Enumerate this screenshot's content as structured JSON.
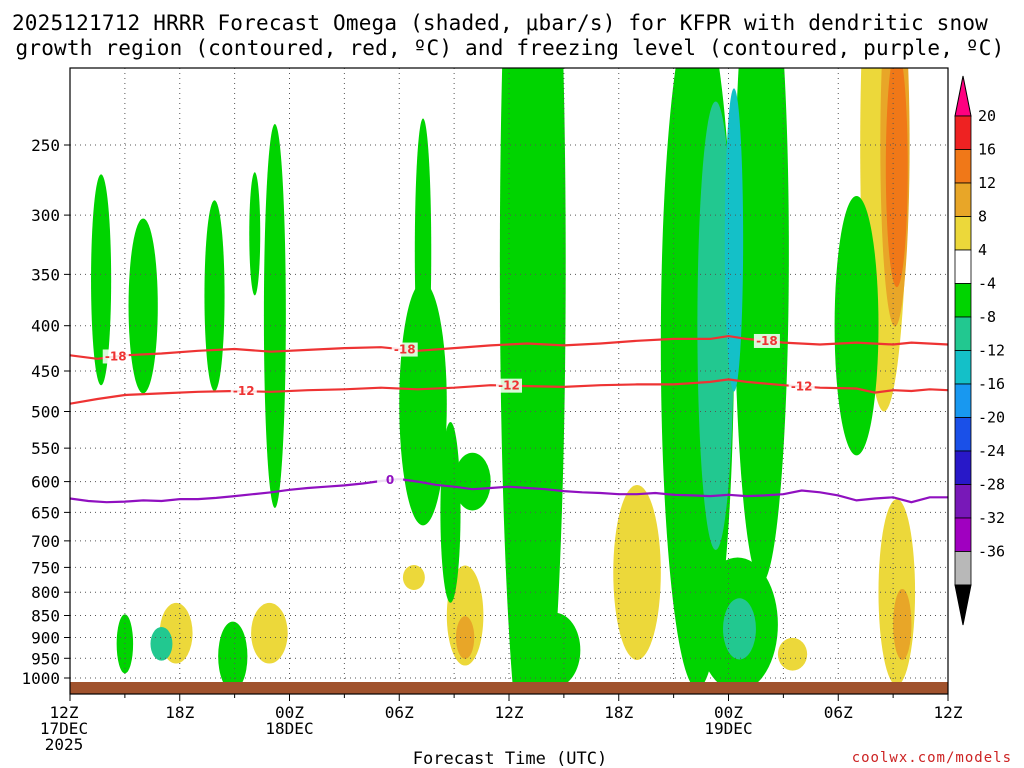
{
  "chart_data": {
    "type": "heatmap",
    "title_lines": [
      "2025121712 HRRR Forecast Omega (shaded, μbar/s) for KFPR with dendritic snow",
      "growth region (contoured, red, ºC) and freezing level (contoured, purple, ºC)"
    ],
    "xlabel": "Forecast Time (UTC)",
    "credit": "coolwx.com/models",
    "x_ticks": [
      {
        "h": 0,
        "lines": [
          "12Z",
          "17DEC",
          "2025"
        ]
      },
      {
        "h": 6,
        "lines": [
          "18Z"
        ]
      },
      {
        "h": 12,
        "lines": [
          "00Z",
          "18DEC"
        ]
      },
      {
        "h": 18,
        "lines": [
          "06Z"
        ]
      },
      {
        "h": 24,
        "lines": [
          "12Z"
        ]
      },
      {
        "h": 30,
        "lines": [
          "18Z"
        ]
      },
      {
        "h": 36,
        "lines": [
          "00Z",
          "19DEC"
        ]
      },
      {
        "h": 42,
        "lines": [
          "06Z"
        ]
      },
      {
        "h": 48,
        "lines": [
          "12Z"
        ]
      }
    ],
    "y_ticks": [
      250,
      300,
      350,
      400,
      450,
      500,
      550,
      600,
      650,
      700,
      750,
      800,
      850,
      900,
      950,
      1000
    ],
    "colorbar": {
      "labels": [
        "20",
        "16",
        "12",
        "8",
        "4",
        "-4",
        "-8",
        "-12",
        "-16",
        "-20",
        "-24",
        "-28",
        "-32",
        "-36"
      ],
      "colors": [
        "#ff0080",
        "#ee2222",
        "#f07818",
        "#e8a628",
        "#ecd83a",
        "#ffffff",
        "#00d400",
        "#22c890",
        "#14c0c8",
        "#1898f0",
        "#1a50e8",
        "#2818c8",
        "#7818b8",
        "#a000c0",
        "#b8b8b8",
        "#000000"
      ]
    },
    "contours": [
      {
        "name": "dgz_minus18",
        "label": "-18",
        "color": "#ee3333",
        "points": [
          [
            0,
            432
          ],
          [
            1.5,
            436
          ],
          [
            3,
            432
          ],
          [
            5,
            430
          ],
          [
            7,
            427
          ],
          [
            9,
            425
          ],
          [
            11,
            428
          ],
          [
            13,
            426
          ],
          [
            15,
            424
          ],
          [
            17,
            423
          ],
          [
            19,
            427
          ],
          [
            21,
            424
          ],
          [
            23,
            421
          ],
          [
            25,
            419
          ],
          [
            27,
            421
          ],
          [
            29,
            419
          ],
          [
            31,
            416
          ],
          [
            33,
            414
          ],
          [
            35,
            414
          ],
          [
            36,
            411
          ],
          [
            37,
            414
          ],
          [
            39,
            418
          ],
          [
            41,
            420
          ],
          [
            43,
            418
          ],
          [
            45,
            420
          ],
          [
            46,
            418
          ],
          [
            48,
            420
          ]
        ],
        "label_h": [
          2.5,
          18.3,
          38.1
        ]
      },
      {
        "name": "dgz_minus12",
        "label": "-12",
        "color": "#ee3333",
        "points": [
          [
            0,
            490
          ],
          [
            1.5,
            484
          ],
          [
            3,
            479
          ],
          [
            5,
            477
          ],
          [
            7,
            475
          ],
          [
            9,
            474
          ],
          [
            11,
            475
          ],
          [
            13,
            473
          ],
          [
            15,
            472
          ],
          [
            17,
            470
          ],
          [
            19,
            472
          ],
          [
            21,
            470
          ],
          [
            23,
            467
          ],
          [
            25,
            468
          ],
          [
            27,
            469
          ],
          [
            29,
            467
          ],
          [
            31,
            466
          ],
          [
            33,
            466
          ],
          [
            35,
            463
          ],
          [
            36,
            460
          ],
          [
            37,
            463
          ],
          [
            39,
            467
          ],
          [
            41,
            470
          ],
          [
            43,
            471
          ],
          [
            44,
            476
          ],
          [
            45,
            473
          ],
          [
            46,
            474
          ],
          [
            47,
            472
          ],
          [
            48,
            473
          ]
        ],
        "label_h": [
          9.5,
          24.0,
          40.0
        ]
      },
      {
        "name": "freezing_level_0",
        "label": "0",
        "color": "#9010c0",
        "points": [
          [
            0,
            627
          ],
          [
            1,
            631
          ],
          [
            2,
            633
          ],
          [
            3,
            632
          ],
          [
            4,
            630
          ],
          [
            5,
            631
          ],
          [
            6,
            628
          ],
          [
            7,
            628
          ],
          [
            8,
            626
          ],
          [
            9,
            623
          ],
          [
            10,
            620
          ],
          [
            11,
            617
          ],
          [
            12,
            613
          ],
          [
            13,
            610
          ],
          [
            14,
            608
          ],
          [
            15,
            606
          ],
          [
            16,
            603
          ],
          [
            17,
            599
          ],
          [
            18,
            596
          ],
          [
            19,
            600
          ],
          [
            20,
            605
          ],
          [
            21,
            608
          ],
          [
            22,
            612
          ],
          [
            23,
            610
          ],
          [
            24,
            608
          ],
          [
            25,
            610
          ],
          [
            26,
            612
          ],
          [
            27,
            615
          ],
          [
            28,
            617
          ],
          [
            29,
            618
          ],
          [
            30,
            620
          ],
          [
            31,
            620
          ],
          [
            32,
            618
          ],
          [
            33,
            621
          ],
          [
            34,
            622
          ],
          [
            35,
            623
          ],
          [
            36,
            621
          ],
          [
            37,
            623
          ],
          [
            38,
            622
          ],
          [
            39,
            620
          ],
          [
            40,
            614
          ],
          [
            41,
            617
          ],
          [
            42,
            622
          ],
          [
            43,
            630
          ],
          [
            44,
            627
          ],
          [
            45,
            625
          ],
          [
            46,
            633
          ],
          [
            47,
            625
          ],
          [
            48,
            625
          ]
        ],
        "label_h": [
          17.5
        ]
      }
    ],
    "omega_regions": [
      {
        "v": -4,
        "h": 1.7,
        "p": 355,
        "rh": 0.55,
        "rp": 95
      },
      {
        "v": -4,
        "h": 4.0,
        "p": 380,
        "rh": 0.8,
        "rp": 85
      },
      {
        "v": -4,
        "h": 7.9,
        "p": 370,
        "rh": 0.55,
        "rp": 90
      },
      {
        "v": -4,
        "h": 10.1,
        "p": 315,
        "rh": 0.3,
        "rp": 50
      },
      {
        "v": -4,
        "h": 19.3,
        "p": 330,
        "rh": 0.45,
        "rp": 110
      },
      {
        "v": -4,
        "h": 22.0,
        "p": 600,
        "rh": 1.0,
        "rp": 45
      },
      {
        "v": 4,
        "h": 5.8,
        "p": 890,
        "rh": 0.9,
        "rp": 70
      },
      {
        "v": 4,
        "h": 10.9,
        "p": 890,
        "rh": 1.0,
        "rp": 70
      },
      {
        "v": 4,
        "h": 18.8,
        "p": 770,
        "rh": 0.6,
        "rp": 25
      },
      {
        "v": 4,
        "h": 21.6,
        "p": 850,
        "rh": 1.0,
        "rp": 110
      },
      {
        "v": 4,
        "h": 31.0,
        "p": 760,
        "rh": 1.3,
        "rp": 170
      },
      {
        "v": 4,
        "h": 34.0,
        "p": 780,
        "rh": 0.5,
        "rp": 60
      },
      {
        "v": 4,
        "h": 39.5,
        "p": 940,
        "rh": 0.8,
        "rp": 40
      },
      {
        "v": 4,
        "h": 44.5,
        "p": 250,
        "rh": 1.3,
        "rp": 150
      },
      {
        "v": 4,
        "h": 45.2,
        "p": 800,
        "rh": 1.0,
        "rp": 190
      },
      {
        "v": -8,
        "h": 8.9,
        "p": 945,
        "rh": 0.8,
        "rp": 85
      },
      {
        "v": -8,
        "h": 3.0,
        "p": 915,
        "rh": 0.45,
        "rp": 70
      },
      {
        "v": -8,
        "h": 11.2,
        "p": 390,
        "rh": 0.6,
        "rp": 180
      },
      {
        "v": -8,
        "h": 19.3,
        "p": 490,
        "rh": 1.3,
        "rp": 150
      },
      {
        "v": -8,
        "h": 20.8,
        "p": 650,
        "rh": 0.55,
        "rp": 150
      },
      {
        "v": -8,
        "h": 25.3,
        "p": 340,
        "rh": 1.8,
        "rp": 300
      },
      {
        "v": -8,
        "h": 26.5,
        "p": 930,
        "rh": 1.4,
        "rp": 90
      },
      {
        "v": -8,
        "h": 34.3,
        "p": 420,
        "rh": 2.0,
        "rp": 300
      },
      {
        "v": -8,
        "h": 37.8,
        "p": 330,
        "rh": 1.5,
        "rp": 230
      },
      {
        "v": -8,
        "h": 36.5,
        "p": 870,
        "rh": 2.2,
        "rp": 150
      },
      {
        "v": -8,
        "h": 43.0,
        "p": 400,
        "rh": 1.2,
        "rp": 130
      },
      {
        "v": -12,
        "h": 35.3,
        "p": 400,
        "rh": 1.0,
        "rp": 210
      },
      {
        "v": -12,
        "h": 36.6,
        "p": 880,
        "rh": 0.9,
        "rp": 70
      },
      {
        "v": -12,
        "h": 5.0,
        "p": 915,
        "rh": 0.6,
        "rp": 40
      },
      {
        "v": -16,
        "h": 36.3,
        "p": 320,
        "rh": 0.5,
        "rp": 120
      },
      {
        "v": 8,
        "h": 45.1,
        "p": 250,
        "rh": 0.8,
        "rp": 110
      },
      {
        "v": 8,
        "h": 45.5,
        "p": 870,
        "rh": 0.5,
        "rp": 80
      },
      {
        "v": 8,
        "h": 21.6,
        "p": 900,
        "rh": 0.5,
        "rp": 50
      },
      {
        "v": 12,
        "h": 45.2,
        "p": 265,
        "rh": 0.6,
        "rp": 80
      }
    ]
  }
}
